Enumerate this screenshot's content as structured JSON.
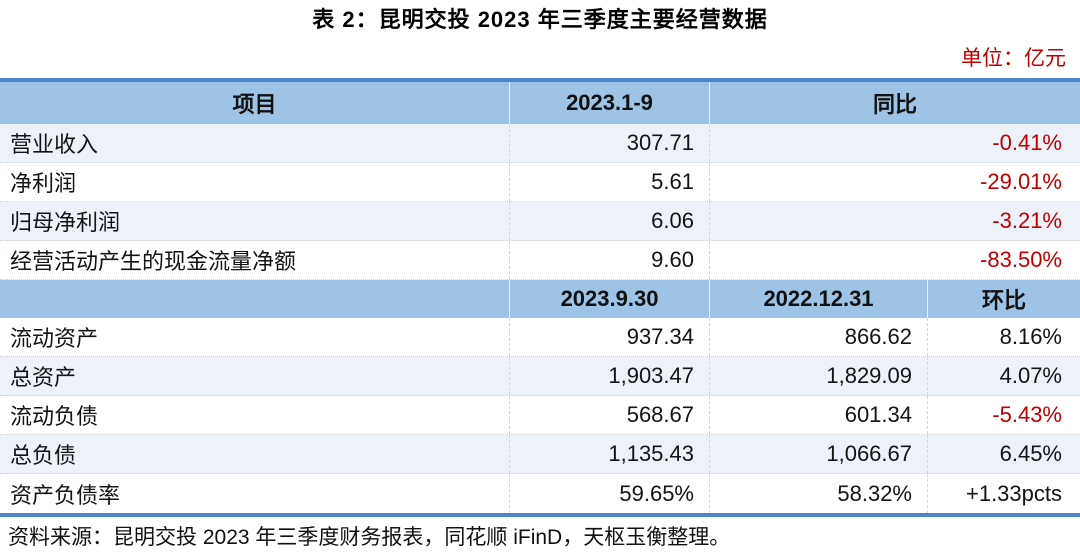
{
  "title": "表 2：昆明交投 2023 年三季度主要经营数据",
  "unit_label": "单位：亿元",
  "colors": {
    "header_bg": "#9DC3E6",
    "row_alt_bg": "#EDF2FA",
    "negative_text": "#C00000",
    "table_border": "#4A86C8",
    "unit_text": "#C00000"
  },
  "table": {
    "header1": {
      "col1": "项目",
      "col2": "2023.1-9",
      "col3": "同比"
    },
    "section1": {
      "rows": [
        {
          "label": "营业收入",
          "value": "307.71",
          "yoy": "-0.41%"
        },
        {
          "label": "净利润",
          "value": "5.61",
          "yoy": "-29.01%"
        },
        {
          "label": "归母净利润",
          "value": "6.06",
          "yoy": "-3.21%"
        },
        {
          "label": "经营活动产生的现金流量净额",
          "value": "9.60",
          "yoy": "-83.50%"
        }
      ]
    },
    "header2": {
      "col1": "",
      "col2": "2023.9.30",
      "col3": "2022.12.31",
      "col4": "环比"
    },
    "section2": {
      "rows": [
        {
          "label": "流动资产",
          "v2023": "937.34",
          "v2022": "866.62",
          "qoq": "8.16%"
        },
        {
          "label": "总资产",
          "v2023": "1,903.47",
          "v2022": "1,829.09",
          "qoq": "4.07%"
        },
        {
          "label": "流动负债",
          "v2023": "568.67",
          "v2022": "601.34",
          "qoq": "-5.43%"
        },
        {
          "label": "总负债",
          "v2023": "1,135.43",
          "v2022": "1,066.67",
          "qoq": "6.45%"
        },
        {
          "label": "资产负债率",
          "v2023": "59.65%",
          "v2022": "58.32%",
          "qoq": "+1.33pcts"
        }
      ]
    }
  },
  "source": "资料来源：昆明交投 2023 年三季度财务报表，同花顺 iFinD，天枢玉衡整理。"
}
